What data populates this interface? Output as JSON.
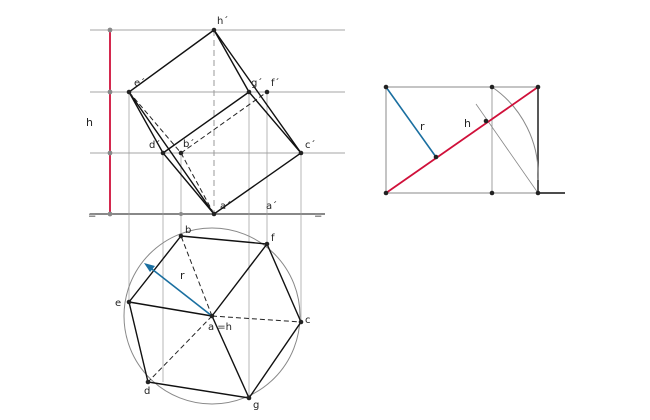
{
  "colors": {
    "height_line": "#d0103a",
    "radius_line": "#1a6fa0",
    "edge": "#111111",
    "construction": "#888888"
  },
  "labels": {
    "h_prime": "h´",
    "e_prime": "e´",
    "g_prime": "g´",
    "f_prime": "f´",
    "d_prime": "d´",
    "b_prime": "b´",
    "c_prime": "c´",
    "a_prime_left": "a´",
    "a_prime_right": "a´",
    "height_left": "h",
    "ground_left": "=",
    "ground_right": "=",
    "b": "b",
    "f": "f",
    "e": "e",
    "c": "c",
    "a_eq_h": "a =h",
    "d": "d",
    "g": "g",
    "radius_plan": "r",
    "radius_aux": "r",
    "height_aux": "h"
  }
}
